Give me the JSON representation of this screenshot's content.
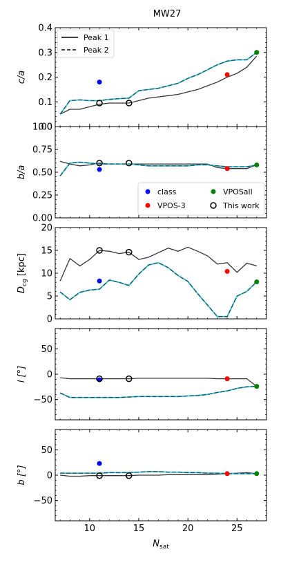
{
  "figure_title": "MW27",
  "colors": {
    "peak1": "#333333",
    "peak2_dash": "#1a4f6e",
    "peak2_under": "#2ec4c4",
    "class": "#0000ff",
    "vpos3": "#ff0000",
    "vposall": "#008000",
    "this_work": "#000000"
  },
  "chart_data": [
    {
      "type": "line",
      "ylabel": "c/a",
      "ylim": [
        0,
        0.4
      ],
      "yticks": [
        0.0,
        0.1,
        0.2,
        0.3,
        0.4
      ],
      "ytick_labels": [
        "0.0",
        "0.1",
        "0.2",
        "0.3",
        "0.4"
      ],
      "xlim": [
        6.5,
        28
      ],
      "series": [
        {
          "name": "Peak 1",
          "style": "solid",
          "x": [
            7,
            8,
            9,
            10,
            11,
            12,
            13,
            14,
            15,
            16,
            17,
            18,
            19,
            20,
            21,
            22,
            23,
            24,
            25,
            26,
            27
          ],
          "y": [
            0.05,
            0.07,
            0.07,
            0.08,
            0.09,
            0.095,
            0.095,
            0.095,
            0.105,
            0.115,
            0.12,
            0.125,
            0.13,
            0.14,
            0.15,
            0.165,
            0.18,
            0.2,
            0.215,
            0.24,
            0.285
          ]
        },
        {
          "name": "Peak 2",
          "style": "dashed",
          "x": [
            7,
            8,
            9,
            10,
            11,
            12,
            13,
            14,
            15,
            16,
            17,
            18,
            19,
            20,
            21,
            22,
            23,
            24,
            25,
            26,
            27
          ],
          "y": [
            0.05,
            0.105,
            0.108,
            0.105,
            0.105,
            0.11,
            0.113,
            0.115,
            0.145,
            0.15,
            0.155,
            0.165,
            0.175,
            0.195,
            0.21,
            0.23,
            0.25,
            0.265,
            0.27,
            0.27,
            0.3
          ]
        }
      ],
      "markers": [
        {
          "kind": "class",
          "x": 11,
          "y": 0.18
        },
        {
          "kind": "vpos3",
          "x": 24,
          "y": 0.21
        },
        {
          "kind": "vposall",
          "x": 27,
          "y": 0.3
        },
        {
          "kind": "this_work",
          "x": 11,
          "y": 0.095
        },
        {
          "kind": "this_work",
          "x": 14,
          "y": 0.095
        }
      ],
      "legend": {
        "placement": "top-left",
        "entries": [
          {
            "label": "Peak 1",
            "style": "solid"
          },
          {
            "label": "Peak 2",
            "style": "dashed"
          }
        ]
      }
    },
    {
      "type": "line",
      "ylabel": "b/a",
      "ylim": [
        0,
        1
      ],
      "yticks": [
        0,
        0.25,
        0.5,
        0.75,
        1.0
      ],
      "ytick_labels": [
        "0.00",
        "0.25",
        "0.50",
        "0.75",
        "1.00"
      ],
      "xlim": [
        6.5,
        28
      ],
      "series": [
        {
          "name": "Peak 1",
          "style": "solid",
          "x": [
            7,
            8,
            9,
            10,
            11,
            12,
            13,
            14,
            15,
            16,
            17,
            18,
            19,
            20,
            21,
            22,
            23,
            24,
            25,
            26,
            27
          ],
          "y": [
            0.62,
            0.59,
            0.57,
            0.58,
            0.6,
            0.59,
            0.59,
            0.59,
            0.59,
            0.59,
            0.59,
            0.59,
            0.59,
            0.59,
            0.59,
            0.59,
            0.55,
            0.54,
            0.54,
            0.54,
            0.58
          ]
        },
        {
          "name": "Peak 2",
          "style": "dashed",
          "x": [
            7,
            8,
            9,
            10,
            11,
            12,
            13,
            14,
            15,
            16,
            17,
            18,
            19,
            20,
            21,
            22,
            23,
            24,
            25,
            26,
            27
          ],
          "y": [
            0.46,
            0.6,
            0.61,
            0.6,
            0.59,
            0.59,
            0.59,
            0.59,
            0.58,
            0.57,
            0.57,
            0.57,
            0.57,
            0.57,
            0.58,
            0.58,
            0.57,
            0.56,
            0.56,
            0.56,
            0.58
          ]
        }
      ],
      "markers": [
        {
          "kind": "class",
          "x": 11,
          "y": 0.53
        },
        {
          "kind": "vpos3",
          "x": 24,
          "y": 0.54
        },
        {
          "kind": "vposall",
          "x": 27,
          "y": 0.58
        },
        {
          "kind": "this_work",
          "x": 11,
          "y": 0.6
        },
        {
          "kind": "this_work",
          "x": 14,
          "y": 0.6
        }
      ],
      "legend": {
        "placement": "bottom-right",
        "entries": [
          {
            "label": "class",
            "kind": "class"
          },
          {
            "label": "VPOSall",
            "kind": "vposall"
          },
          {
            "label": "VPOS-3",
            "kind": "vpos3"
          },
          {
            "label": "This work",
            "kind": "this_work"
          }
        ]
      }
    },
    {
      "type": "line",
      "ylabel": "D_cg [kpc]",
      "ylim": [
        0,
        20
      ],
      "yticks": [
        0,
        5,
        10,
        15,
        20
      ],
      "ytick_labels": [
        "0",
        "5",
        "10",
        "15",
        "20"
      ],
      "xlim": [
        6.5,
        28
      ],
      "series": [
        {
          "name": "Peak 1",
          "style": "solid",
          "x": [
            7,
            8,
            9,
            10,
            11,
            12,
            13,
            14,
            15,
            16,
            17,
            18,
            19,
            20,
            21,
            22,
            23,
            24,
            25,
            26,
            27
          ],
          "y": [
            8.3,
            13.2,
            11.6,
            13.0,
            15.0,
            14.8,
            14.3,
            14.6,
            13.0,
            13.5,
            14.5,
            15.5,
            14.8,
            15.7,
            14.8,
            13.8,
            12.0,
            12.3,
            10.2,
            12.2,
            11.6
          ]
        },
        {
          "name": "Peak 2",
          "style": "dashed",
          "x": [
            7,
            8,
            9,
            10,
            11,
            12,
            13,
            14,
            15,
            16,
            17,
            18,
            19,
            20,
            21,
            22,
            23,
            24,
            25,
            26,
            27
          ],
          "y": [
            5.9,
            4.2,
            5.8,
            6.3,
            6.5,
            8.5,
            8.0,
            7.3,
            9.8,
            11.8,
            12.3,
            11.2,
            9.5,
            8.2,
            5.5,
            3.0,
            0.5,
            0.5,
            5.0,
            6.0,
            8.1
          ]
        }
      ],
      "markers": [
        {
          "kind": "class",
          "x": 11,
          "y": 8.3
        },
        {
          "kind": "vpos3",
          "x": 24,
          "y": 10.4
        },
        {
          "kind": "vposall",
          "x": 27,
          "y": 8.1
        },
        {
          "kind": "this_work",
          "x": 11,
          "y": 15.0
        },
        {
          "kind": "this_work",
          "x": 14,
          "y": 14.6
        }
      ]
    },
    {
      "type": "line",
      "ylabel": "l [°]",
      "ylim": [
        -90,
        90
      ],
      "yticks": [
        -50,
        0,
        50
      ],
      "ytick_labels": [
        "−50",
        "0",
        "50"
      ],
      "xlim": [
        6.5,
        28
      ],
      "series": [
        {
          "name": "Peak 1",
          "style": "solid",
          "x": [
            7,
            8,
            9,
            10,
            11,
            12,
            13,
            14,
            15,
            16,
            17,
            18,
            19,
            20,
            21,
            22,
            23,
            24,
            25,
            26,
            27
          ],
          "y": [
            -7,
            -9,
            -9,
            -9,
            -9,
            -9,
            -9,
            -9,
            -8,
            -8,
            -8,
            -8,
            -8,
            -8,
            -8,
            -8,
            -9,
            -9,
            -9,
            -9,
            -24
          ]
        },
        {
          "name": "Peak 2",
          "style": "dashed",
          "x": [
            7,
            8,
            9,
            10,
            11,
            12,
            13,
            14,
            15,
            16,
            17,
            18,
            19,
            20,
            21,
            22,
            23,
            24,
            25,
            26,
            27
          ],
          "y": [
            -37,
            -46,
            -46,
            -46,
            -46,
            -46,
            -46,
            -45,
            -44,
            -44,
            -44,
            -44,
            -44,
            -43,
            -42,
            -40,
            -36,
            -33,
            -28,
            -25,
            -24
          ]
        }
      ],
      "markers": [
        {
          "kind": "class",
          "x": 11,
          "y": -11
        },
        {
          "kind": "vpos3",
          "x": 24,
          "y": -9
        },
        {
          "kind": "vposall",
          "x": 27,
          "y": -24
        },
        {
          "kind": "this_work",
          "x": 11,
          "y": -9
        },
        {
          "kind": "this_work",
          "x": 14,
          "y": -9
        }
      ]
    },
    {
      "type": "line",
      "ylabel": "b [°]",
      "xlabel": "N_sat",
      "ylim": [
        -90,
        90
      ],
      "yticks": [
        -50,
        0,
        50
      ],
      "ytick_labels": [
        "−50",
        "0",
        "50"
      ],
      "xlim": [
        6.5,
        28
      ],
      "xticks": [
        10,
        15,
        20,
        25
      ],
      "xtick_labels": [
        "10",
        "15",
        "20",
        "25"
      ],
      "series": [
        {
          "name": "Peak 1",
          "style": "solid",
          "x": [
            7,
            8,
            9,
            10,
            11,
            12,
            13,
            14,
            15,
            16,
            17,
            18,
            19,
            20,
            21,
            22,
            23,
            24,
            25,
            26,
            27
          ],
          "y": [
            0,
            -2,
            -2,
            -1,
            -1,
            -1,
            -1,
            -1,
            0,
            0,
            0,
            1,
            1,
            1,
            1,
            1,
            2,
            3,
            4,
            5,
            3
          ]
        },
        {
          "name": "Peak 2",
          "style": "dashed",
          "x": [
            7,
            8,
            9,
            10,
            11,
            12,
            13,
            14,
            15,
            16,
            17,
            18,
            19,
            20,
            21,
            22,
            23,
            24,
            25,
            26,
            27
          ],
          "y": [
            4,
            4,
            4,
            4,
            4,
            5,
            5,
            5,
            6,
            7,
            7,
            6,
            6,
            5,
            5,
            4,
            4,
            3,
            3,
            3,
            3
          ]
        }
      ],
      "markers": [
        {
          "kind": "class",
          "x": 11,
          "y": 23
        },
        {
          "kind": "vpos3",
          "x": 24,
          "y": 3
        },
        {
          "kind": "vposall",
          "x": 27,
          "y": 3
        },
        {
          "kind": "this_work",
          "x": 11,
          "y": -1
        },
        {
          "kind": "this_work",
          "x": 14,
          "y": -1
        }
      ]
    }
  ]
}
